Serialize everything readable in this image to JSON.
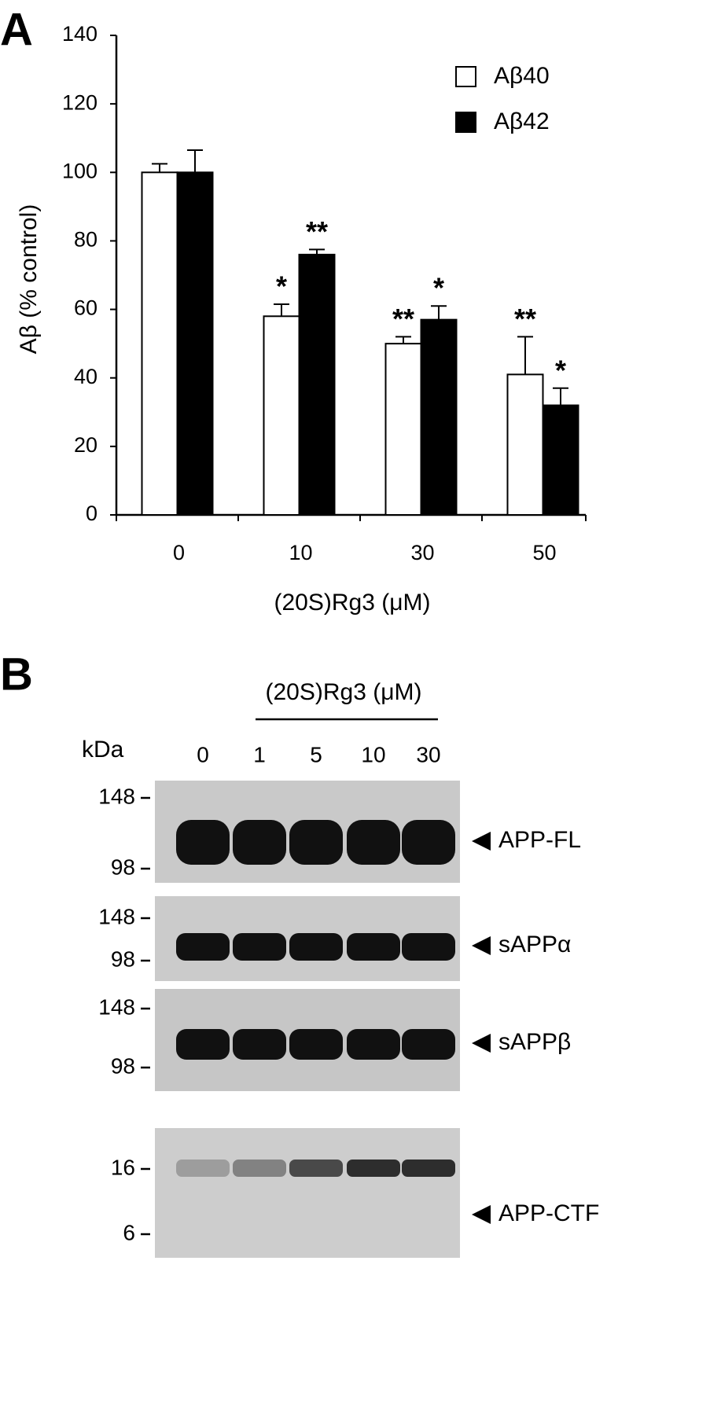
{
  "chart_data": {
    "type": "bar",
    "panel_label": "A",
    "y_label": "Aβ (% control)",
    "x_label": "(20S)Rg3 (μM)",
    "categories": [
      "0",
      "10",
      "30",
      "50"
    ],
    "series": [
      {
        "name": "Aβ40",
        "color": "#ffffff",
        "values": [
          100,
          58,
          50,
          41
        ],
        "errors": [
          2.5,
          3.5,
          2,
          11
        ],
        "annotations": [
          null,
          "*",
          "**",
          "**"
        ]
      },
      {
        "name": "Aβ42",
        "color": "#000000",
        "values": [
          100,
          76,
          57,
          32
        ],
        "errors": [
          6.5,
          1.5,
          4,
          5
        ],
        "annotations": [
          null,
          "**",
          "*",
          "*"
        ]
      }
    ],
    "ylim": [
      0,
      140
    ],
    "yticks": [
      0,
      20,
      40,
      60,
      80,
      100,
      120,
      140
    ],
    "grid": false,
    "legend": "top-right"
  },
  "blot": {
    "panel_label": "B",
    "title": "(20S)Rg3 (μM)",
    "kda_label": "kDa",
    "lanes": [
      "0",
      "1",
      "5",
      "10",
      "30"
    ],
    "panels": [
      {
        "markers": [
          148,
          98
        ],
        "label": "APP-FL"
      },
      {
        "markers": [
          148,
          98
        ],
        "label": "sAPPα"
      },
      {
        "markers": [
          148,
          98
        ],
        "label": "sAPPβ"
      },
      {
        "markers": [
          16,
          6
        ],
        "label": "APP-CTF"
      }
    ]
  }
}
